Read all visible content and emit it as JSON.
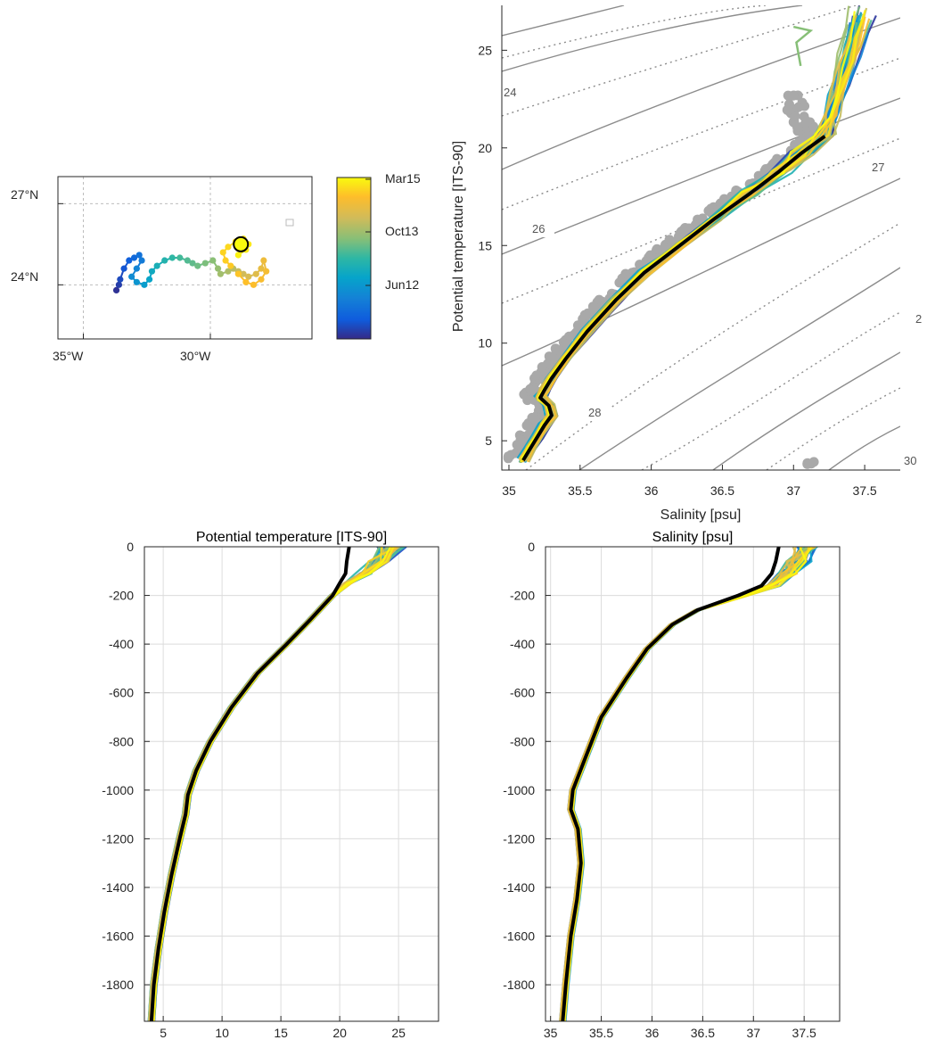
{
  "colors": {
    "parula": [
      "#352a87",
      "#0f5cdd",
      "#1481d6",
      "#06a4ca",
      "#2eb7a4",
      "#87bf77",
      "#d1bb59",
      "#febd2a",
      "#f9fb0e"
    ],
    "mean_profile": "#000000",
    "background_ts": "#aaaaaa",
    "isopycnal": "#8c8c8c"
  },
  "map": {
    "lat_ticks": [
      "27°N",
      "24°N"
    ],
    "lon_ticks": [
      "35°W",
      "30°W"
    ],
    "marker": "current-position-circle"
  },
  "colorbar": {
    "tick_labels": [
      "Mar15",
      "Oct13",
      "Jun12"
    ]
  },
  "ts_diagram": {
    "xlabel": "Salinity [psu]",
    "ylabel": "Potential temperature [ITS-90]",
    "x_ticks": [
      "35",
      "35.5",
      "36",
      "36.5",
      "37",
      "37.5"
    ],
    "y_ticks": [
      "5",
      "10",
      "15",
      "20",
      "25"
    ],
    "isopycnal_labels": [
      "24",
      "26",
      "27",
      "28",
      "30",
      "2"
    ]
  },
  "temp_profile": {
    "title": "Potential temperature [ITS-90]",
    "x_ticks": [
      "5",
      "10",
      "15",
      "20",
      "25"
    ],
    "y_ticks": [
      "0",
      "-200",
      "-400",
      "-600",
      "-800",
      "-1000",
      "-1200",
      "-1400",
      "-1600",
      "-1800"
    ]
  },
  "sal_profile": {
    "title": "Salinity [psu]",
    "x_ticks": [
      "35",
      "35.5",
      "36",
      "36.5",
      "37",
      "37.5"
    ],
    "y_ticks": [
      "0",
      "-200",
      "-400",
      "-600",
      "-800",
      "-1000",
      "-1200",
      "-1400",
      "-1600",
      "-1800"
    ]
  },
  "chart_data": [
    {
      "type": "scatter",
      "panel": "float-trajectory-map",
      "xlabel": "",
      "ylabel": "",
      "xlim": [
        -36,
        -26
      ],
      "ylim": [
        22,
        28
      ],
      "x_ticks": [
        -35,
        -30
      ],
      "y_ticks": [
        24,
        27
      ],
      "grid": true,
      "points": {
        "lon": [
          -33.7,
          -33.6,
          -33.55,
          -33.4,
          -33.2,
          -33.0,
          -32.8,
          -32.7,
          -32.9,
          -33.1,
          -32.9,
          -32.6,
          -32.4,
          -32.3,
          -32.1,
          -31.8,
          -31.5,
          -31.2,
          -30.9,
          -30.7,
          -30.5,
          -30.2,
          -29.9,
          -29.7,
          -29.6,
          -29.3,
          -29.1,
          -28.9,
          -28.7,
          -28.5,
          -28.2,
          -28.0,
          -27.9,
          -27.8,
          -28.0,
          -28.3,
          -28.6,
          -28.9,
          -29.2,
          -29.4,
          -29.5,
          -29.3,
          -29.0,
          -28.7,
          -28.5,
          -28.6,
          -28.9
        ],
        "lat": [
          23.8,
          24.0,
          24.2,
          24.6,
          24.9,
          25.0,
          25.1,
          24.9,
          24.6,
          24.3,
          24.1,
          24.0,
          24.2,
          24.5,
          24.7,
          24.9,
          25.0,
          25.0,
          24.9,
          24.8,
          24.7,
          24.8,
          24.9,
          24.6,
          24.4,
          24.5,
          24.6,
          24.5,
          24.4,
          24.3,
          24.4,
          24.6,
          24.9,
          24.5,
          24.2,
          24.0,
          24.1,
          24.4,
          24.7,
          24.9,
          25.2,
          25.4,
          25.6,
          25.7,
          25.5,
          25.3,
          25.1
        ],
        "t": [
          0.02,
          0.05,
          0.08,
          0.11,
          0.14,
          0.17,
          0.2,
          0.23,
          0.26,
          0.29,
          0.32,
          0.35,
          0.38,
          0.41,
          0.44,
          0.47,
          0.5,
          0.53,
          0.55,
          0.57,
          0.59,
          0.61,
          0.63,
          0.65,
          0.67,
          0.69,
          0.71,
          0.73,
          0.75,
          0.77,
          0.79,
          0.81,
          0.83,
          0.85,
          0.86,
          0.87,
          0.88,
          0.89,
          0.9,
          0.91,
          0.92,
          0.93,
          0.94,
          0.95,
          0.96,
          0.97,
          0.98
        ]
      },
      "current_position": {
        "lon": -28.8,
        "lat": 25.5
      }
    },
    {
      "type": "line",
      "panel": "ts-diagram",
      "xlabel": "Salinity [psu]",
      "ylabel": "Potential temperature [ITS-90]",
      "xlim": [
        34.95,
        37.75
      ],
      "ylim": [
        3.5,
        27.3
      ],
      "x_ticks": [
        35,
        35.5,
        36,
        36.5,
        37,
        37.5
      ],
      "y_ticks": [
        5,
        10,
        15,
        20,
        25
      ],
      "series": [
        {
          "name": "",
          "role": "mean",
          "salinity": [
            35.1,
            35.15,
            35.2,
            35.25,
            35.3,
            35.28,
            35.22,
            35.25,
            35.3,
            35.4,
            35.55,
            35.75,
            35.95,
            36.2,
            36.45,
            36.7,
            36.9,
            37.05,
            37.22
          ],
          "temperature": [
            4.0,
            4.6,
            5.2,
            5.8,
            6.3,
            6.8,
            7.2,
            7.6,
            8.2,
            9.2,
            10.6,
            12.2,
            13.6,
            15.0,
            16.4,
            17.7,
            18.8,
            19.7,
            20.6
          ]
        }
      ],
      "isopycnal_labels": [
        "24",
        "26",
        "27",
        "28",
        "30",
        "2"
      ]
    },
    {
      "type": "line",
      "panel": "temperature-profile",
      "title": "Potential temperature [ITS-90]",
      "xlim": [
        3.4,
        28.4
      ],
      "ylim": [
        -1950,
        0
      ],
      "x_ticks": [
        5,
        10,
        15,
        20,
        25
      ],
      "y_ticks": [
        0,
        -200,
        -400,
        -600,
        -800,
        -1000,
        -1200,
        -1400,
        -1600,
        -1800
      ],
      "grid": true,
      "series": [
        {
          "name": "",
          "role": "mean",
          "temperature": [
            20.8,
            20.6,
            20.5,
            20.0,
            19.4,
            17.5,
            15.5,
            13.0,
            10.8,
            9.0,
            7.8,
            7.1,
            6.9,
            6.4,
            5.7,
            5.1,
            4.6,
            4.2,
            4.0
          ],
          "depth": [
            0,
            -60,
            -110,
            -150,
            -200,
            -300,
            -400,
            -520,
            -660,
            -800,
            -920,
            -1020,
            -1100,
            -1200,
            -1350,
            -1500,
            -1650,
            -1800,
            -1950
          ]
        }
      ]
    },
    {
      "type": "line",
      "panel": "salinity-profile",
      "title": "Salinity [psu]",
      "xlim": [
        34.95,
        37.85
      ],
      "ylim": [
        -1950,
        0
      ],
      "x_ticks": [
        35,
        35.5,
        36,
        36.5,
        37,
        37.5
      ],
      "y_ticks": [
        0,
        -200,
        -400,
        -600,
        -800,
        -1000,
        -1200,
        -1400,
        -1600,
        -1800
      ],
      "grid": true,
      "series": [
        {
          "name": "",
          "role": "mean",
          "salinity": [
            37.25,
            37.22,
            37.18,
            37.08,
            36.85,
            36.45,
            36.2,
            35.95,
            35.75,
            35.5,
            35.35,
            35.22,
            35.2,
            35.27,
            35.3,
            35.26,
            35.2,
            35.15,
            35.12
          ],
          "depth": [
            0,
            -60,
            -110,
            -160,
            -200,
            -260,
            -320,
            -420,
            -540,
            -700,
            -860,
            -1000,
            -1080,
            -1160,
            -1300,
            -1450,
            -1600,
            -1800,
            -1950
          ]
        }
      ]
    }
  ]
}
